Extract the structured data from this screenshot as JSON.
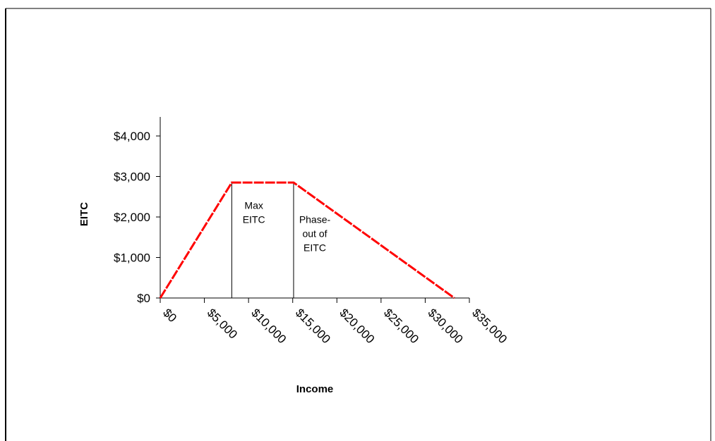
{
  "chart_data": {
    "type": "line",
    "title": "",
    "xlabel": "Income",
    "ylabel": "EITC",
    "x_ticks": [
      0,
      5000,
      10000,
      15000,
      20000,
      25000,
      30000,
      35000
    ],
    "x_tick_labels": [
      "$0",
      "$5,000",
      "$10,000",
      "$15,000",
      "$20,000",
      "$25,000",
      "$30,000",
      "$35,000"
    ],
    "y_ticks": [
      0,
      1000,
      2000,
      3000,
      4000
    ],
    "y_tick_labels": [
      "$0",
      "$1,000",
      "$2,000",
      "$3,000",
      "$4,000"
    ],
    "xlim": [
      0,
      35000
    ],
    "ylim": [
      0,
      4000
    ],
    "grid": false,
    "series": [
      {
        "name": "",
        "color": "#ff0000",
        "x": [
          0,
          8100,
          15100,
          33300
        ],
        "y": [
          0,
          2850,
          2850,
          0
        ]
      }
    ],
    "region_lines_x": [
      8100,
      15100
    ],
    "annotations": [
      {
        "lines": [
          "Max",
          "EITC"
        ],
        "x": 10600,
        "y": 2200
      },
      {
        "lines": [
          "Phase-",
          "out of",
          "EITC"
        ],
        "x": 17500,
        "y": 1850
      }
    ]
  }
}
